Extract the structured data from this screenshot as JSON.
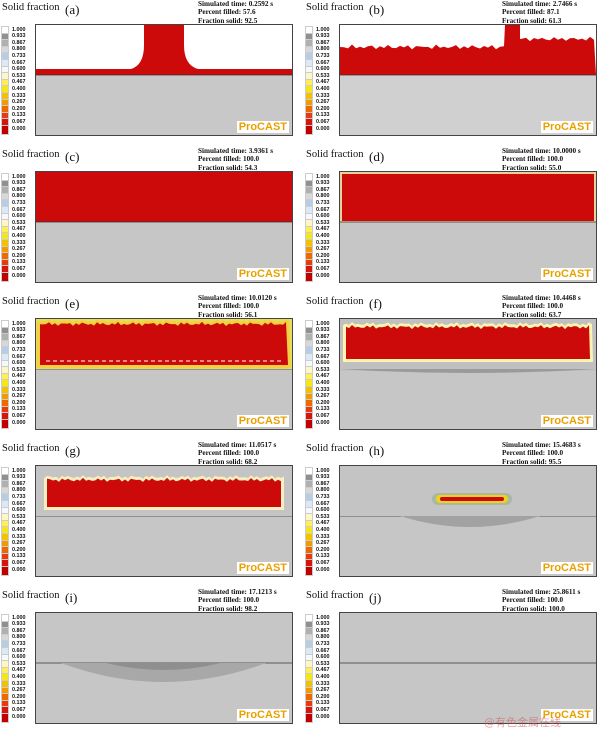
{
  "colorbar_labels": [
    "1.000",
    "0.933",
    "0.867",
    "0.800",
    "0.733",
    "0.667",
    "0.600",
    "0.533",
    "0.467",
    "0.400",
    "0.333",
    "0.267",
    "0.200",
    "0.133",
    "0.067",
    "0.000"
  ],
  "colorbar_colors": [
    "#ffffff",
    "#909090",
    "#b0b0b0",
    "#d8d8d8",
    "#b5cde6",
    "#dbe9f6",
    "#f5f9fd",
    "#fff7c2",
    "#ffee55",
    "#f5e61a",
    "#f2c200",
    "#f29a00",
    "#ee6a00",
    "#e83a0a",
    "#d8140c",
    "#c00000"
  ],
  "colors": {
    "liquid": "#cc0a0a",
    "solid": "#cbcbcb",
    "mould_dark": "#9e9e9e",
    "logo": "#e8a200",
    "empty": "#ffffff"
  },
  "title": "Solid fraction",
  "logo": "ProCAST",
  "watermark": "@有色金属在线",
  "panels": [
    {
      "letter": "(a)",
      "time": "Simulated time: 0.2592 s",
      "filled": "Percent filled: 57.6",
      "solid": "Fraction solid: 92.5"
    },
    {
      "letter": "(b)",
      "time": "Simulated time: 2.7466 s",
      "filled": "Percent filled: 87.1",
      "solid": "Fraction solid: 61.3"
    },
    {
      "letter": "(c)",
      "time": "Simulated time: 3.9361 s",
      "filled": "Percent filled: 100.0",
      "solid": "Fraction solid: 54.3"
    },
    {
      "letter": "(d)",
      "time": "Simulated time: 10.0000 s",
      "filled": "Percent filled: 100.0",
      "solid": "Fraction solid: 55.0"
    },
    {
      "letter": "(e)",
      "time": "Simulated time: 10.0120 s",
      "filled": "Percent filled: 100.0",
      "solid": "Fraction solid: 56.1"
    },
    {
      "letter": "(f)",
      "time": "Simulated time: 10.4468 s",
      "filled": "Percent filled: 100.0",
      "solid": "Fraction solid: 63.7"
    },
    {
      "letter": "(g)",
      "time": "Simulated time: 11.0517 s",
      "filled": "Percent filled: 100.0",
      "solid": "Fraction solid: 68.2"
    },
    {
      "letter": "(h)",
      "time": "Simulated time: 15.4683 s",
      "filled": "Percent filled: 100.0",
      "solid": "Fraction solid: 95.5"
    },
    {
      "letter": "(i)",
      "time": "Simulated time: 17.1213 s",
      "filled": "Percent filled: 100.0",
      "solid": "Fraction solid: 98.2"
    },
    {
      "letter": "(j)",
      "time": "Simulated time: 25.8611 s",
      "filled": "Percent filled: 100.0",
      "solid": "Fraction solid: 100.0"
    }
  ]
}
